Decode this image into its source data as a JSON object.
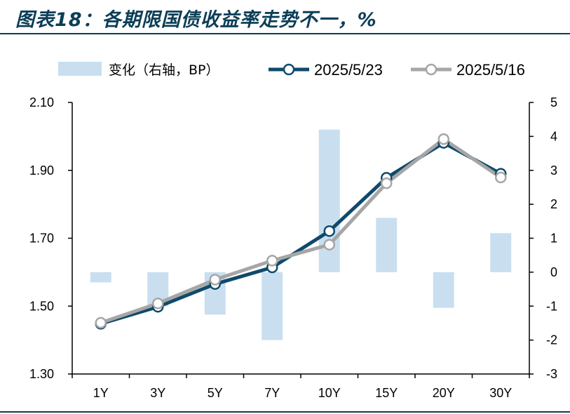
{
  "title": "图表18：各期限国债收益率走势不一，%",
  "chart_data": {
    "type": "bar+line",
    "categories": [
      "1Y",
      "3Y",
      "5Y",
      "7Y",
      "10Y",
      "15Y",
      "20Y",
      "30Y"
    ],
    "series": [
      {
        "name": "变化（右轴，BP）",
        "type": "bar",
        "axis": "right",
        "color": "#c9dff0",
        "values": [
          -0.3,
          -1.0,
          -1.25,
          -2.0,
          4.2,
          1.6,
          -1.05,
          1.15
        ]
      },
      {
        "name": "2025/5/23",
        "type": "line",
        "axis": "left",
        "color": "#0f4a6b",
        "values": [
          1.448,
          1.498,
          1.565,
          1.614,
          1.721,
          1.878,
          1.981,
          1.89
        ]
      },
      {
        "name": "2025/5/16",
        "type": "line",
        "axis": "left",
        "color": "#a6a6a6",
        "values": [
          1.451,
          1.508,
          1.578,
          1.634,
          1.681,
          1.862,
          1.992,
          1.879
        ]
      }
    ],
    "y_left": {
      "ylim": [
        1.3,
        2.1
      ],
      "ticks": [
        "1.30",
        "1.50",
        "1.70",
        "1.90",
        "2.10"
      ]
    },
    "y_right": {
      "ylim": [
        -3,
        5
      ],
      "ticks": [
        "-3",
        "-2",
        "-1",
        "0",
        "1",
        "2",
        "3",
        "4",
        "5"
      ]
    },
    "grid": false,
    "legend_position": "top"
  }
}
